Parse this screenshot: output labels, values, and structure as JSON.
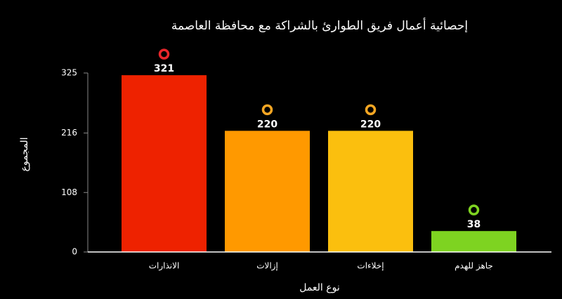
{
  "chart_data": {
    "type": "bar",
    "title": "إحصائية أعمال فريق الطوارئ بالشراكة مع محافظة العاصمة",
    "xlabel": "نوع العمل",
    "ylabel": "المجموع",
    "categories": [
      "الانذارات",
      "إزالات",
      "إخلاءات",
      "جاهز للهدم"
    ],
    "values": [
      321,
      220,
      220,
      38
    ],
    "colors": [
      "#ee2200",
      "#ff9900",
      "#fbbf0e",
      "#7ed321"
    ],
    "marker_colors": [
      "#e8262b",
      "#f5a623",
      "#f5a623",
      "#7ed321"
    ],
    "ylim": [
      0,
      325
    ],
    "yticks": [
      0,
      108,
      216,
      325
    ],
    "grid": false
  }
}
